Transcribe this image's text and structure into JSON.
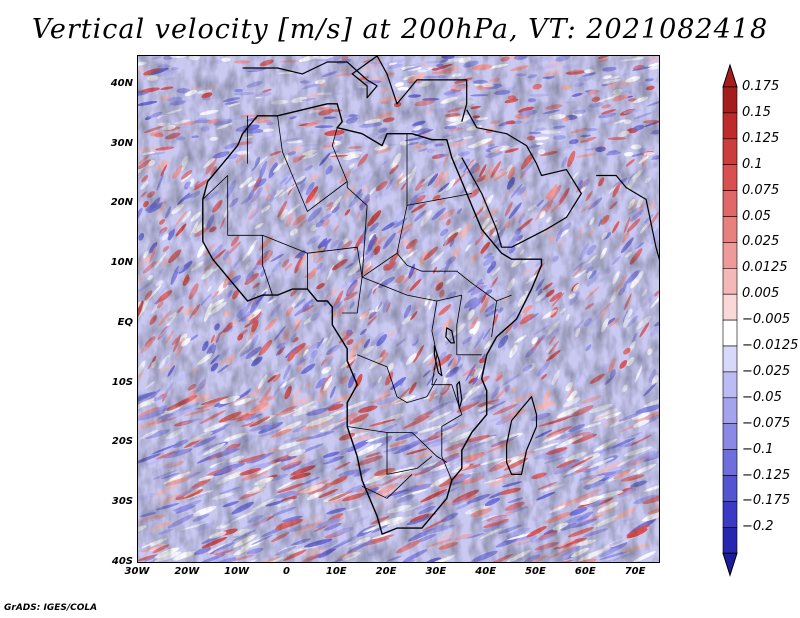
{
  "title": "Vertical velocity [m/s] at 200hPa, VT: 2021082418",
  "credit": "GrADS: IGES/COLA",
  "map": {
    "lon_range": [
      -30,
      75
    ],
    "lat_range": [
      -40,
      45
    ],
    "lat_ticks": [
      {
        "value": 40,
        "label": "40N"
      },
      {
        "value": 30,
        "label": "30N"
      },
      {
        "value": 20,
        "label": "20N"
      },
      {
        "value": 10,
        "label": "10N"
      },
      {
        "value": 0,
        "label": "EQ"
      },
      {
        "value": -10,
        "label": "10S"
      },
      {
        "value": -20,
        "label": "20S"
      },
      {
        "value": -30,
        "label": "30S"
      },
      {
        "value": -40,
        "label": "40S"
      }
    ],
    "lon_ticks": [
      {
        "value": -30,
        "label": "30W"
      },
      {
        "value": -20,
        "label": "20W"
      },
      {
        "value": -10,
        "label": "10W"
      },
      {
        "value": 0,
        "label": "0"
      },
      {
        "value": 10,
        "label": "10E"
      },
      {
        "value": 20,
        "label": "20E"
      },
      {
        "value": 30,
        "label": "30E"
      },
      {
        "value": 40,
        "label": "40E"
      },
      {
        "value": 50,
        "label": "50E"
      },
      {
        "value": 60,
        "label": "60E"
      },
      {
        "value": 70,
        "label": "70E"
      }
    ],
    "africa_outline": [
      [
        -17,
        21
      ],
      [
        -16,
        24
      ],
      [
        -13,
        27
      ],
      [
        -10,
        30
      ],
      [
        -9,
        32
      ],
      [
        -6,
        35
      ],
      [
        -2,
        35
      ],
      [
        3,
        36
      ],
      [
        8,
        37
      ],
      [
        10,
        37
      ],
      [
        11,
        34
      ],
      [
        10,
        33
      ],
      [
        15,
        32
      ],
      [
        19,
        30
      ],
      [
        20,
        32
      ],
      [
        25,
        32
      ],
      [
        29,
        31
      ],
      [
        32,
        31
      ],
      [
        33,
        28
      ],
      [
        35,
        24
      ],
      [
        37,
        20
      ],
      [
        39,
        16
      ],
      [
        43,
        12
      ],
      [
        45,
        11
      ],
      [
        51,
        11
      ],
      [
        51,
        10
      ],
      [
        49,
        6
      ],
      [
        46,
        1
      ],
      [
        42,
        -2
      ],
      [
        40,
        -5
      ],
      [
        39,
        -9
      ],
      [
        40,
        -11
      ],
      [
        40,
        -15
      ],
      [
        37,
        -18
      ],
      [
        35,
        -21
      ],
      [
        35,
        -24
      ],
      [
        33,
        -26
      ],
      [
        32,
        -29
      ],
      [
        30,
        -31
      ],
      [
        27,
        -34
      ],
      [
        22,
        -34
      ],
      [
        19,
        -35
      ],
      [
        18,
        -32
      ],
      [
        16,
        -28
      ],
      [
        15,
        -26
      ],
      [
        14,
        -22
      ],
      [
        12,
        -17
      ],
      [
        12,
        -13
      ],
      [
        14,
        -10
      ],
      [
        12,
        -6
      ],
      [
        12,
        -4
      ],
      [
        9,
        0
      ],
      [
        9,
        3
      ],
      [
        8,
        4
      ],
      [
        6,
        4
      ],
      [
        4,
        6
      ],
      [
        1,
        6
      ],
      [
        -2,
        5
      ],
      [
        -5,
        5
      ],
      [
        -8,
        4
      ],
      [
        -11,
        7
      ],
      [
        -13,
        9
      ],
      [
        -15,
        11
      ],
      [
        -17,
        14
      ],
      [
        -17,
        18
      ],
      [
        -17,
        21
      ]
    ],
    "madagascar_outline": [
      [
        49,
        -12
      ],
      [
        50,
        -15
      ],
      [
        50,
        -17
      ],
      [
        48,
        -21
      ],
      [
        47,
        -25
      ],
      [
        45,
        -25
      ],
      [
        44,
        -23
      ],
      [
        44,
        -20
      ],
      [
        45,
        -16
      ],
      [
        47,
        -14
      ],
      [
        49,
        -12
      ]
    ],
    "arabia_outline": [
      [
        35,
        28
      ],
      [
        39,
        22
      ],
      [
        42,
        16
      ],
      [
        43,
        13
      ],
      [
        45,
        13
      ],
      [
        52,
        16
      ],
      [
        56,
        18
      ],
      [
        59,
        22
      ],
      [
        56,
        26
      ],
      [
        51,
        25
      ],
      [
        50,
        27
      ],
      [
        48,
        30
      ],
      [
        44,
        32
      ],
      [
        38,
        33
      ],
      [
        36,
        36
      ]
    ],
    "europe_outline": [
      [
        -9,
        43
      ],
      [
        -2,
        43
      ],
      [
        3,
        42
      ],
      [
        8,
        44
      ],
      [
        12,
        44
      ],
      [
        16,
        41
      ],
      [
        18,
        40
      ],
      [
        16,
        38
      ],
      [
        16,
        40
      ],
      [
        13,
        42
      ],
      [
        18,
        45
      ],
      [
        20,
        42
      ],
      [
        22,
        37
      ],
      [
        24,
        39
      ],
      [
        26,
        41
      ],
      [
        30,
        41
      ],
      [
        36,
        41
      ],
      [
        36,
        37
      ],
      [
        35,
        34
      ]
    ],
    "india_outline": [
      [
        62,
        25
      ],
      [
        66,
        25
      ],
      [
        68,
        23
      ],
      [
        70,
        22
      ],
      [
        72,
        21
      ],
      [
        73,
        17
      ],
      [
        74,
        13
      ],
      [
        75,
        10
      ]
    ],
    "borders": [
      [
        [
          -8,
          27
        ],
        [
          -8,
          35
        ]
      ],
      [
        [
          -2,
          35
        ],
        [
          -1,
          29
        ],
        [
          4,
          19
        ],
        [
          12,
          24
        ],
        [
          9,
          30
        ],
        [
          10,
          33
        ]
      ],
      [
        [
          12,
          24
        ],
        [
          12,
          23
        ],
        [
          16,
          20
        ],
        [
          15,
          8
        ],
        [
          22,
          12
        ],
        [
          24,
          20
        ],
        [
          24,
          32
        ]
      ],
      [
        [
          24,
          20
        ],
        [
          37,
          22
        ]
      ],
      [
        [
          22,
          12
        ],
        [
          24,
          10
        ],
        [
          27,
          9
        ],
        [
          34,
          9
        ],
        [
          37,
          7
        ],
        [
          42,
          4
        ],
        [
          45,
          5
        ]
      ],
      [
        [
          -5,
          15
        ],
        [
          -12,
          15
        ],
        [
          -12,
          25
        ],
        [
          -17,
          21
        ]
      ],
      [
        [
          -5,
          15
        ],
        [
          4,
          12
        ],
        [
          14,
          13
        ],
        [
          15,
          8
        ]
      ],
      [
        [
          4,
          12
        ],
        [
          4,
          6
        ]
      ],
      [
        [
          -5,
          15
        ],
        [
          -5,
          10
        ],
        [
          -3,
          5
        ]
      ],
      [
        [
          15,
          8
        ],
        [
          14,
          2
        ],
        [
          11,
          2
        ]
      ],
      [
        [
          15,
          8
        ],
        [
          24,
          5
        ],
        [
          30,
          4
        ],
        [
          35,
          5
        ]
      ],
      [
        [
          30,
          4
        ],
        [
          29,
          -1
        ],
        [
          30,
          -5
        ],
        [
          29,
          -10
        ],
        [
          33,
          -10
        ]
      ],
      [
        [
          35,
          5
        ],
        [
          34,
          0
        ],
        [
          34,
          -5
        ],
        [
          39,
          -5
        ]
      ],
      [
        [
          14,
          -5
        ],
        [
          20,
          -7
        ],
        [
          22,
          -12
        ],
        [
          24,
          -13
        ],
        [
          28,
          -12
        ],
        [
          30,
          -9
        ]
      ],
      [
        [
          12,
          -17
        ],
        [
          20,
          -18
        ],
        [
          25,
          -18
        ],
        [
          30,
          -22
        ],
        [
          32,
          -23
        ]
      ],
      [
        [
          20,
          -18
        ],
        [
          20,
          -25
        ],
        [
          26,
          -24
        ],
        [
          29,
          -22
        ]
      ],
      [
        [
          15,
          -27
        ],
        [
          20,
          -29
        ],
        [
          25,
          -25
        ]
      ],
      [
        [
          33,
          -10
        ],
        [
          35,
          -15
        ],
        [
          31,
          -17
        ],
        [
          31,
          -22
        ],
        [
          33,
          -26
        ]
      ],
      [
        [
          42,
          4
        ],
        [
          41,
          -2
        ]
      ]
    ],
    "lakes": [
      [
        [
          33,
          -1
        ],
        [
          33.5,
          -3
        ],
        [
          32.8,
          -3
        ],
        [
          31.8,
          -2
        ],
        [
          32,
          -0.5
        ],
        [
          33,
          -1
        ]
      ],
      [
        [
          29.5,
          -3.5
        ],
        [
          30.5,
          -6
        ],
        [
          31,
          -8.5
        ],
        [
          30.3,
          -8
        ],
        [
          29.5,
          -5
        ],
        [
          29.5,
          -3.5
        ]
      ],
      [
        [
          34.5,
          -9.5
        ],
        [
          35,
          -12.5
        ],
        [
          34.5,
          -14
        ],
        [
          34.2,
          -12
        ],
        [
          34,
          -10
        ],
        [
          34.5,
          -9.5
        ]
      ]
    ]
  },
  "colorbar": {
    "levels": [
      {
        "label": "0.175",
        "color": "#a51d1d"
      },
      {
        "label": "0.15",
        "color": "#bd2b2b"
      },
      {
        "label": "0.125",
        "color": "#cc3d3d"
      },
      {
        "label": "0.1",
        "color": "#d95050"
      },
      {
        "label": "0.075",
        "color": "#e06868"
      },
      {
        "label": "0.05",
        "color": "#e88080"
      },
      {
        "label": "0.025",
        "color": "#ef9a9a"
      },
      {
        "label": "0.0125",
        "color": "#f5b8b8"
      },
      {
        "label": "0.005",
        "color": "#fad8d8"
      },
      {
        "label": "-0.005",
        "color": "#ffffff"
      },
      {
        "label": "-0.0125",
        "color": "#d8d8fa"
      },
      {
        "label": "-0.025",
        "color": "#bcbcf4"
      },
      {
        "label": "-0.05",
        "color": "#a3a3ee"
      },
      {
        "label": "-0.075",
        "color": "#8a8ae6"
      },
      {
        "label": "-0.1",
        "color": "#6e6edc"
      },
      {
        "label": "-0.125",
        "color": "#5454d2"
      },
      {
        "label": "-0.175",
        "color": "#3a3ac4"
      },
      {
        "label": "-0.2",
        "color": "#2626b0"
      }
    ],
    "top_arrow_color": "#a51d1d",
    "bottom_arrow_color": "#1c1c9e"
  },
  "field_colors": {
    "background": "#c9c9f2",
    "positive": [
      "#f5b8b8",
      "#ef9a9a",
      "#e06868",
      "#d95050"
    ],
    "negative": [
      "#a3a3ee",
      "#8a8ae6",
      "#6e6edc",
      "#bcbcf4"
    ],
    "neutral": "#ffffff"
  }
}
